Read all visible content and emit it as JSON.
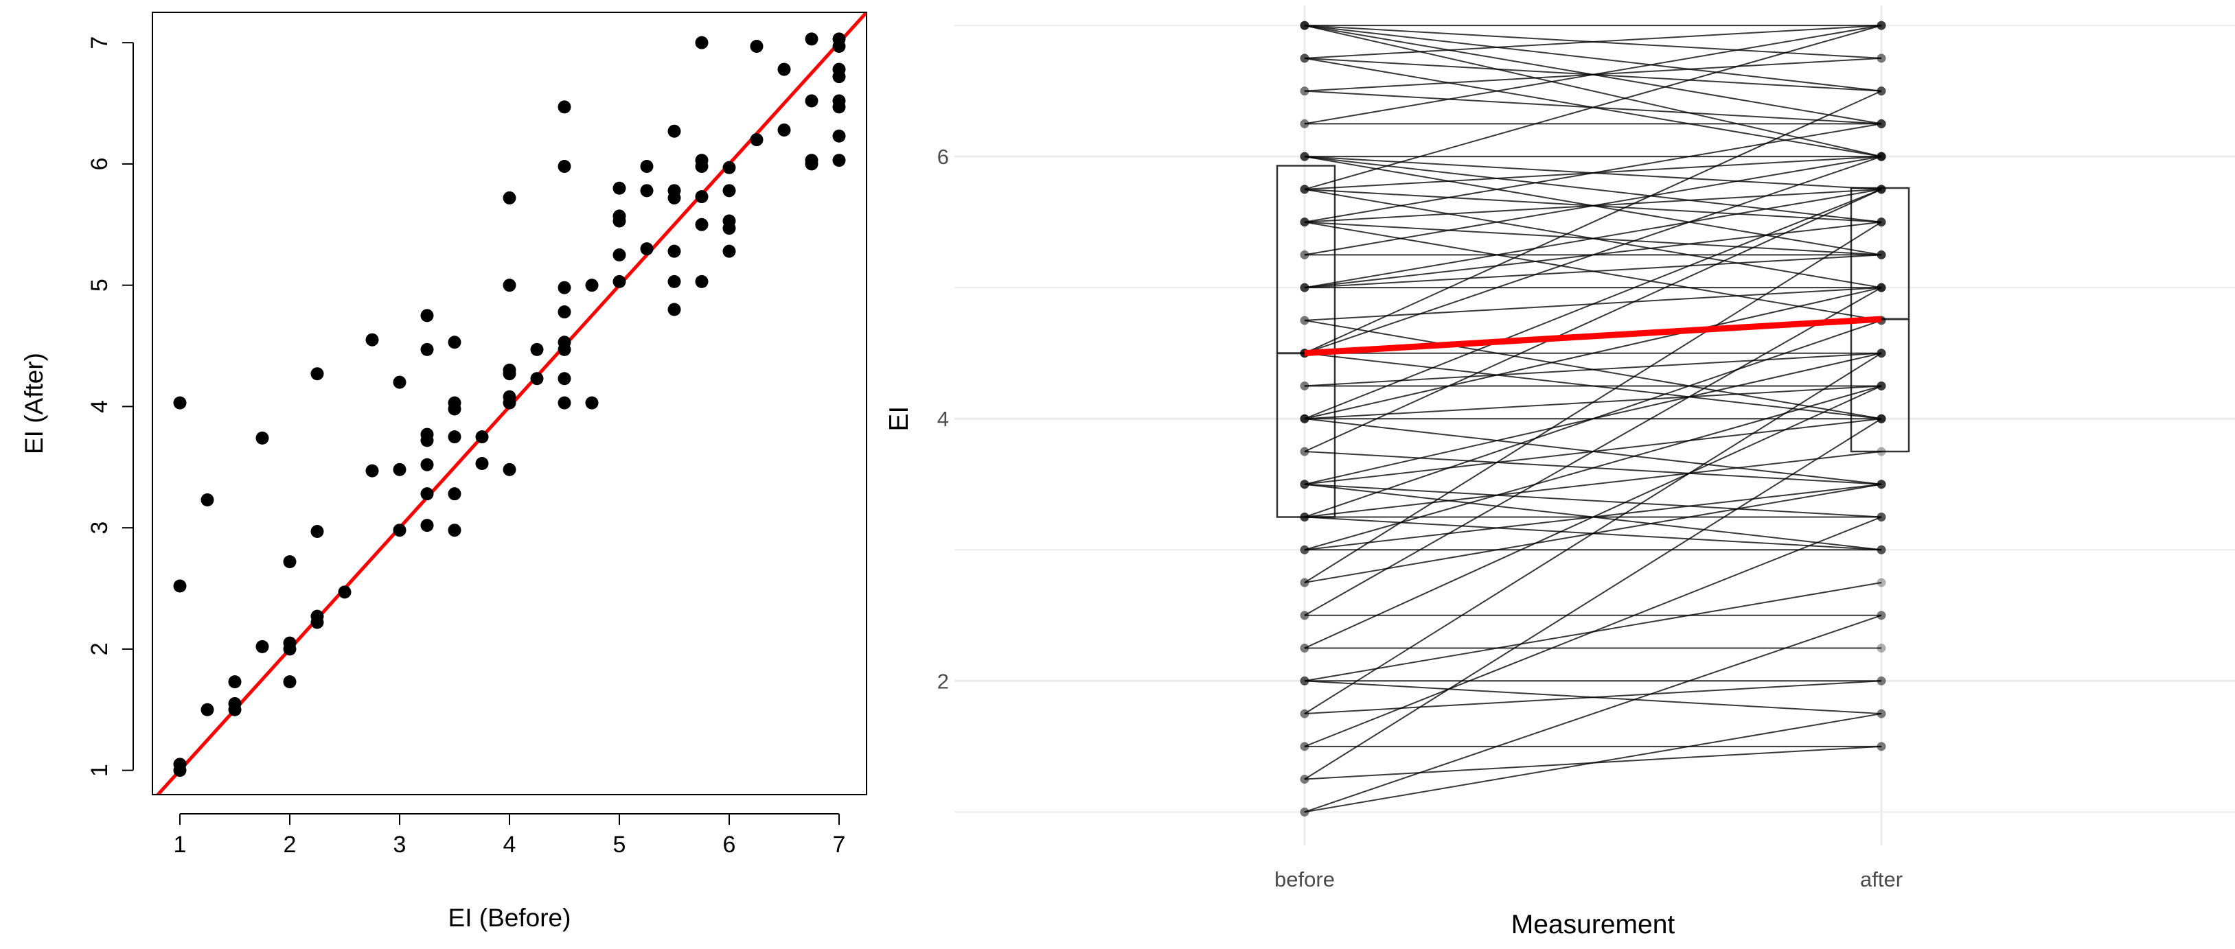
{
  "colors": {
    "points": "#000000",
    "identity_line": "#ff0000",
    "mean_line": "#ff0000",
    "pair_lines": "#000000",
    "grid": "#ebebeb",
    "ggplot_text": "#4d4d4d"
  },
  "chart_data": [
    {
      "type": "scatter",
      "title": "",
      "xlabel": "EI (Before)",
      "ylabel": "EI (After)",
      "xlim": [
        0.75,
        7.25
      ],
      "ylim": [
        0.8,
        7.25
      ],
      "xticks": [
        "1",
        "2",
        "3",
        "4",
        "5",
        "6",
        "7"
      ],
      "yticks": [
        "1",
        "2",
        "3",
        "4",
        "5",
        "6",
        "7"
      ],
      "grid": false,
      "reference_line": {
        "kind": "identity",
        "slope": 1,
        "intercept": 0
      },
      "points": [
        [
          1,
          1
        ],
        [
          1,
          1.05
        ],
        [
          1,
          2.52
        ],
        [
          1,
          4.03
        ],
        [
          1.25,
          1.5
        ],
        [
          1.25,
          3.23
        ],
        [
          1.5,
          1.5
        ],
        [
          1.5,
          1.55
        ],
        [
          1.5,
          1.73
        ],
        [
          1.75,
          2.02
        ],
        [
          1.75,
          3.74
        ],
        [
          2,
          1.73
        ],
        [
          2,
          2.0
        ],
        [
          2,
          2.05
        ],
        [
          2,
          2.72
        ],
        [
          2.25,
          2.22
        ],
        [
          2.25,
          2.27
        ],
        [
          2.25,
          2.97
        ],
        [
          2.25,
          4.27
        ],
        [
          2.5,
          2.47
        ],
        [
          2.75,
          3.47
        ],
        [
          2.75,
          4.55
        ],
        [
          3,
          2.98
        ],
        [
          3,
          3.48
        ],
        [
          3,
          4.2
        ],
        [
          3.25,
          3.02
        ],
        [
          3.25,
          3.28
        ],
        [
          3.25,
          3.52
        ],
        [
          3.25,
          3.72
        ],
        [
          3.25,
          3.77
        ],
        [
          3.25,
          4.47
        ],
        [
          3.25,
          4.75
        ],
        [
          3.5,
          2.98
        ],
        [
          3.5,
          3.28
        ],
        [
          3.5,
          3.75
        ],
        [
          3.5,
          3.98
        ],
        [
          3.5,
          4.03
        ],
        [
          3.5,
          4.53
        ],
        [
          3.75,
          3.53
        ],
        [
          3.75,
          3.75
        ],
        [
          4,
          3.48
        ],
        [
          4,
          4.03
        ],
        [
          4,
          4.08
        ],
        [
          4,
          4.27
        ],
        [
          4,
          4.3
        ],
        [
          4,
          5.0
        ],
        [
          4,
          5.72
        ],
        [
          4.25,
          4.23
        ],
        [
          4.25,
          4.47
        ],
        [
          4.5,
          4.03
        ],
        [
          4.5,
          4.23
        ],
        [
          4.5,
          4.47
        ],
        [
          4.5,
          4.53
        ],
        [
          4.5,
          4.78
        ],
        [
          4.5,
          4.98
        ],
        [
          4.5,
          5.98
        ],
        [
          4.5,
          6.47
        ],
        [
          4.75,
          4.03
        ],
        [
          4.75,
          5.0
        ],
        [
          5,
          5.03
        ],
        [
          5,
          5.25
        ],
        [
          5,
          5.53
        ],
        [
          5,
          5.57
        ],
        [
          5,
          5.8
        ],
        [
          5.25,
          5.3
        ],
        [
          5.25,
          5.78
        ],
        [
          5.25,
          5.98
        ],
        [
          5.5,
          4.8
        ],
        [
          5.5,
          5.03
        ],
        [
          5.5,
          5.28
        ],
        [
          5.5,
          5.72
        ],
        [
          5.5,
          5.78
        ],
        [
          5.5,
          6.27
        ],
        [
          5.75,
          5.03
        ],
        [
          5.75,
          5.5
        ],
        [
          5.75,
          5.73
        ],
        [
          5.75,
          5.98
        ],
        [
          5.75,
          6.03
        ],
        [
          5.75,
          7.0
        ],
        [
          6,
          5.28
        ],
        [
          6,
          5.47
        ],
        [
          6,
          5.53
        ],
        [
          6,
          5.78
        ],
        [
          6,
          5.97
        ],
        [
          6.25,
          6.2
        ],
        [
          6.25,
          6.97
        ],
        [
          6.5,
          6.28
        ],
        [
          6.5,
          6.78
        ],
        [
          6.75,
          6.0
        ],
        [
          6.75,
          6.03
        ],
        [
          6.75,
          6.52
        ],
        [
          6.75,
          7.03
        ],
        [
          7,
          6.03
        ],
        [
          7,
          6.23
        ],
        [
          7,
          6.47
        ],
        [
          7,
          6.52
        ],
        [
          7,
          6.72
        ],
        [
          7,
          6.78
        ],
        [
          7,
          6.97
        ],
        [
          7,
          7.03
        ]
      ]
    },
    {
      "type": "line",
      "title": "",
      "xlabel": "Measurement",
      "ylabel": "EI",
      "categories": [
        "before",
        "after"
      ],
      "ylim": [
        0.85,
        7.1
      ],
      "yticks": [
        "2",
        "4",
        "6"
      ],
      "ytick_values": [
        2,
        4,
        6
      ],
      "grid": true,
      "boxplots": [
        {
          "category": "before",
          "q1": 3.25,
          "median": 4.5,
          "q3": 5.93
        },
        {
          "category": "after",
          "q1": 3.75,
          "median": 4.76,
          "q3": 5.76
        }
      ],
      "mean_line": {
        "before": 4.5,
        "after": 4.76
      },
      "pairs": [
        [
          1,
          2.5
        ],
        [
          1,
          1.75
        ],
        [
          1.25,
          4.0
        ],
        [
          1.25,
          1.5
        ],
        [
          1.5,
          3.25
        ],
        [
          1.5,
          1.5
        ],
        [
          1.75,
          2.0
        ],
        [
          1.75,
          4.5
        ],
        [
          2,
          2.75
        ],
        [
          2,
          2.0
        ],
        [
          2,
          1.75
        ],
        [
          2.25,
          4.25
        ],
        [
          2.25,
          2.25
        ],
        [
          2.5,
          5.0
        ],
        [
          2.5,
          2.5
        ],
        [
          2.75,
          3.5
        ],
        [
          2.75,
          5.5
        ],
        [
          3,
          3.0
        ],
        [
          3,
          4.25
        ],
        [
          3,
          3.5
        ],
        [
          3.25,
          3.75
        ],
        [
          3.25,
          4.75
        ],
        [
          3.25,
          3.25
        ],
        [
          3.25,
          3.0
        ],
        [
          3.5,
          3.0
        ],
        [
          3.5,
          4.0
        ],
        [
          3.5,
          3.25
        ],
        [
          3.5,
          4.5
        ],
        [
          3.75,
          3.5
        ],
        [
          3.75,
          5.75
        ],
        [
          4,
          4.0
        ],
        [
          4,
          5.75
        ],
        [
          4,
          4.25
        ],
        [
          4,
          3.5
        ],
        [
          4,
          5.0
        ],
        [
          4.25,
          4.5
        ],
        [
          4.25,
          4.25
        ],
        [
          4.5,
          4.5
        ],
        [
          4.5,
          6.5
        ],
        [
          4.5,
          4.0
        ],
        [
          4.5,
          6.0
        ],
        [
          4.5,
          4.75
        ],
        [
          4.75,
          5.0
        ],
        [
          4.75,
          4.0
        ],
        [
          5,
          5.5
        ],
        [
          5,
          5.25
        ],
        [
          5,
          5.75
        ],
        [
          5,
          5.0
        ],
        [
          5.25,
          6.0
        ],
        [
          5.25,
          5.25
        ],
        [
          5.5,
          5.25
        ],
        [
          5.5,
          4.75
        ],
        [
          5.5,
          6.25
        ],
        [
          5.5,
          5.75
        ],
        [
          5.75,
          5.0
        ],
        [
          5.75,
          7.0
        ],
        [
          5.75,
          5.5
        ],
        [
          5.75,
          6.0
        ],
        [
          6,
          5.5
        ],
        [
          6,
          5.75
        ],
        [
          6,
          5.25
        ],
        [
          6,
          6.0
        ],
        [
          6.25,
          6.25
        ],
        [
          6.25,
          7.0
        ],
        [
          6.5,
          6.75
        ],
        [
          6.5,
          6.25
        ],
        [
          6.75,
          6.0
        ],
        [
          6.75,
          6.5
        ],
        [
          6.75,
          7.0
        ],
        [
          7,
          6.0
        ],
        [
          7,
          6.75
        ],
        [
          7,
          6.5
        ],
        [
          7,
          7.0
        ],
        [
          7,
          6.25
        ]
      ]
    }
  ]
}
